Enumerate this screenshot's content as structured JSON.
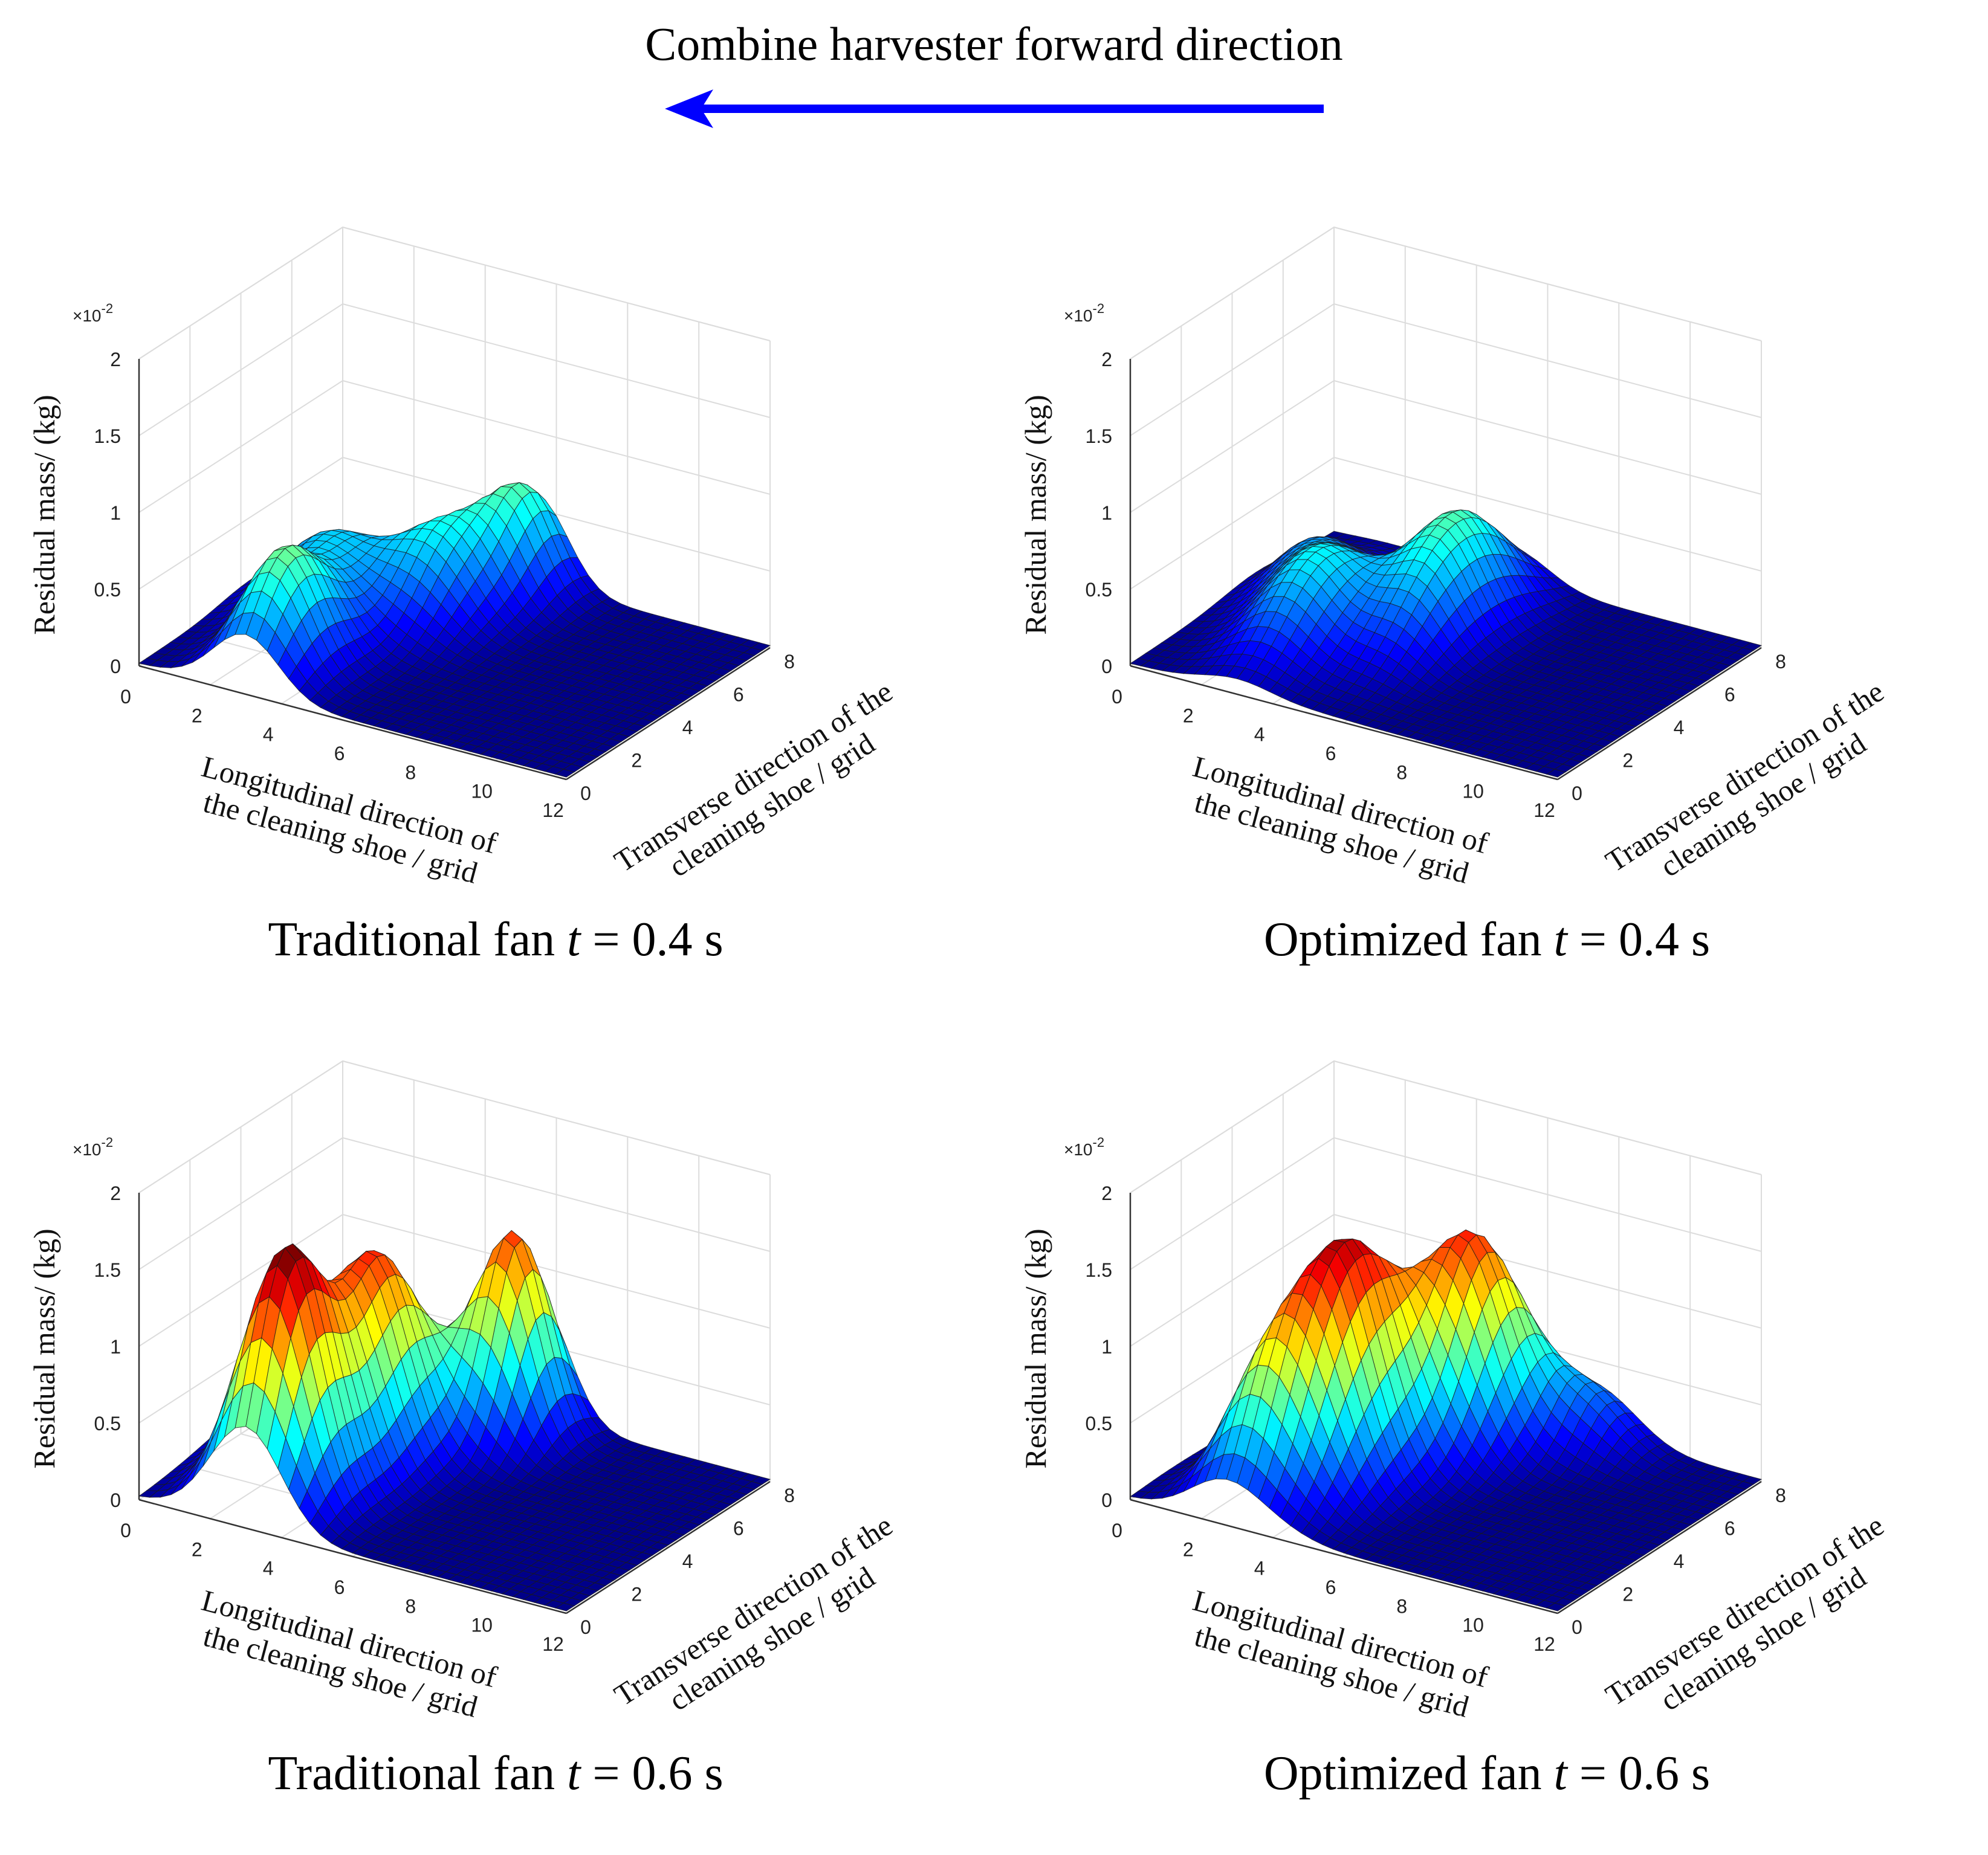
{
  "figure": {
    "title": "Combine harvester forward direction",
    "arrow_color": "#0000ff"
  },
  "chart_data": [
    {
      "type": "surface",
      "caption_prefix": "Traditional fan ",
      "caption_var": "t",
      "caption_value": " = 0.4 s",
      "zlabel": "Residual mass/ (kg)",
      "xlabel_line1": "Longitudinal direction of",
      "xlabel_line2": "the cleaning shoe / grid",
      "ylabel_line1": "Transverse direction of the",
      "ylabel_line2": "cleaning shoe / grid",
      "z_multiplier": "×10",
      "z_exponent": "-2",
      "x_range": [
        0,
        12
      ],
      "y_range": [
        0,
        8
      ],
      "z_range": [
        0,
        2
      ],
      "x_ticks": [
        "0",
        "2",
        "4",
        "6",
        "8",
        "10",
        "12"
      ],
      "y_ticks": [
        "0",
        "2",
        "4",
        "6",
        "8"
      ],
      "z_ticks": [
        "0",
        "0.5",
        "1",
        "1.5",
        "2"
      ],
      "colormap": "jet",
      "peaks": [
        {
          "x": 3.0,
          "y": 1.5,
          "z": 0.75,
          "sx": 1.3,
          "sy": 1.8
        },
        {
          "x": 2.0,
          "y": 4.5,
          "z": 0.45,
          "sx": 1.5,
          "sy": 1.8
        },
        {
          "x": 4.5,
          "y": 5.5,
          "z": 0.55,
          "sx": 1.5,
          "sy": 1.8
        },
        {
          "x": 5.5,
          "y": 7.5,
          "z": 0.6,
          "sx": 1.2,
          "sy": 1.4
        }
      ]
    },
    {
      "type": "surface",
      "caption_prefix": "Optimized fan ",
      "caption_var": "t",
      "caption_value": " = 0.4 s",
      "zlabel": "Residual mass/ (kg)",
      "xlabel_line1": "Longitudinal direction of",
      "xlabel_line2": "the cleaning shoe / grid",
      "ylabel_line1": "Transverse direction of the",
      "ylabel_line2": "cleaning shoe / grid",
      "z_multiplier": "×10",
      "z_exponent": "-2",
      "x_range": [
        0,
        12
      ],
      "y_range": [
        0,
        8
      ],
      "z_range": [
        0,
        2
      ],
      "x_ticks": [
        "0",
        "2",
        "4",
        "6",
        "8",
        "10",
        "12"
      ],
      "y_ticks": [
        "0",
        "2",
        "4",
        "6",
        "8"
      ],
      "z_ticks": [
        "0",
        "0.5",
        "1",
        "1.5",
        "2"
      ],
      "colormap": "jet",
      "peaks": [
        {
          "x": 3.0,
          "y": 3.0,
          "z": 0.55,
          "sx": 1.4,
          "sy": 2.2
        },
        {
          "x": 5.0,
          "y": 6.0,
          "z": 0.55,
          "sx": 1.4,
          "sy": 2.0
        },
        {
          "x": 5.5,
          "y": 4.0,
          "z": 0.35,
          "sx": 1.2,
          "sy": 2.0
        },
        {
          "x": 1.5,
          "y": 5.0,
          "z": 0.3,
          "sx": 1.2,
          "sy": 1.8
        }
      ]
    },
    {
      "type": "surface",
      "caption_prefix": "Traditional fan ",
      "caption_var": "t",
      "caption_value": " = 0.6 s",
      "zlabel": "Residual mass/ (kg)",
      "xlabel_line1": "Longitudinal direction of",
      "xlabel_line2": "the cleaning shoe / grid",
      "ylabel_line1": "Transverse direction of the",
      "ylabel_line2": "cleaning shoe / grid",
      "z_multiplier": "×10",
      "z_exponent": "-2",
      "x_range": [
        0,
        12
      ],
      "y_range": [
        0,
        8
      ],
      "z_range": [
        0,
        2
      ],
      "x_ticks": [
        "0",
        "2",
        "4",
        "6",
        "8",
        "10",
        "12"
      ],
      "y_ticks": [
        "0",
        "2",
        "4",
        "6",
        "8"
      ],
      "z_ticks": [
        "0",
        "0.5",
        "1",
        "1.5",
        "2"
      ],
      "colormap": "jet",
      "peaks": [
        {
          "x": 3.0,
          "y": 1.5,
          "z": 1.55,
          "sx": 1.4,
          "sy": 1.6
        },
        {
          "x": 3.5,
          "y": 4.5,
          "z": 1.25,
          "sx": 1.4,
          "sy": 1.8
        },
        {
          "x": 5.5,
          "y": 7.0,
          "z": 1.3,
          "sx": 1.2,
          "sy": 1.4
        },
        {
          "x": 1.5,
          "y": 4.0,
          "z": 0.35,
          "sx": 1.4,
          "sy": 2.0
        }
      ]
    },
    {
      "type": "surface",
      "caption_prefix": "Optimized fan ",
      "caption_var": "t",
      "caption_value": " = 0.6 s",
      "zlabel": "Residual mass/ (kg)",
      "xlabel_line1": "Longitudinal direction of",
      "xlabel_line2": "the cleaning shoe / grid",
      "ylabel_line1": "Transverse direction of the",
      "ylabel_line2": "cleaning shoe / grid",
      "z_multiplier": "×10",
      "z_exponent": "-2",
      "x_range": [
        0,
        12
      ],
      "y_range": [
        0,
        8
      ],
      "z_range": [
        0,
        2
      ],
      "x_ticks": [
        "0",
        "2",
        "4",
        "6",
        "8",
        "10",
        "12"
      ],
      "y_ticks": [
        "0",
        "2",
        "4",
        "6",
        "8"
      ],
      "z_ticks": [
        "0",
        "0.5",
        "1",
        "1.5",
        "2"
      ],
      "colormap": "jet",
      "peaks": [
        {
          "x": 3.5,
          "y": 3.5,
          "z": 1.45,
          "sx": 1.5,
          "sy": 2.2
        },
        {
          "x": 5.0,
          "y": 6.5,
          "z": 1.25,
          "sx": 1.5,
          "sy": 1.8
        },
        {
          "x": 2.5,
          "y": 1.5,
          "z": 0.55,
          "sx": 1.3,
          "sy": 1.5
        },
        {
          "x": 7.5,
          "y": 7.5,
          "z": 0.35,
          "sx": 1.5,
          "sy": 1.2
        }
      ]
    }
  ]
}
